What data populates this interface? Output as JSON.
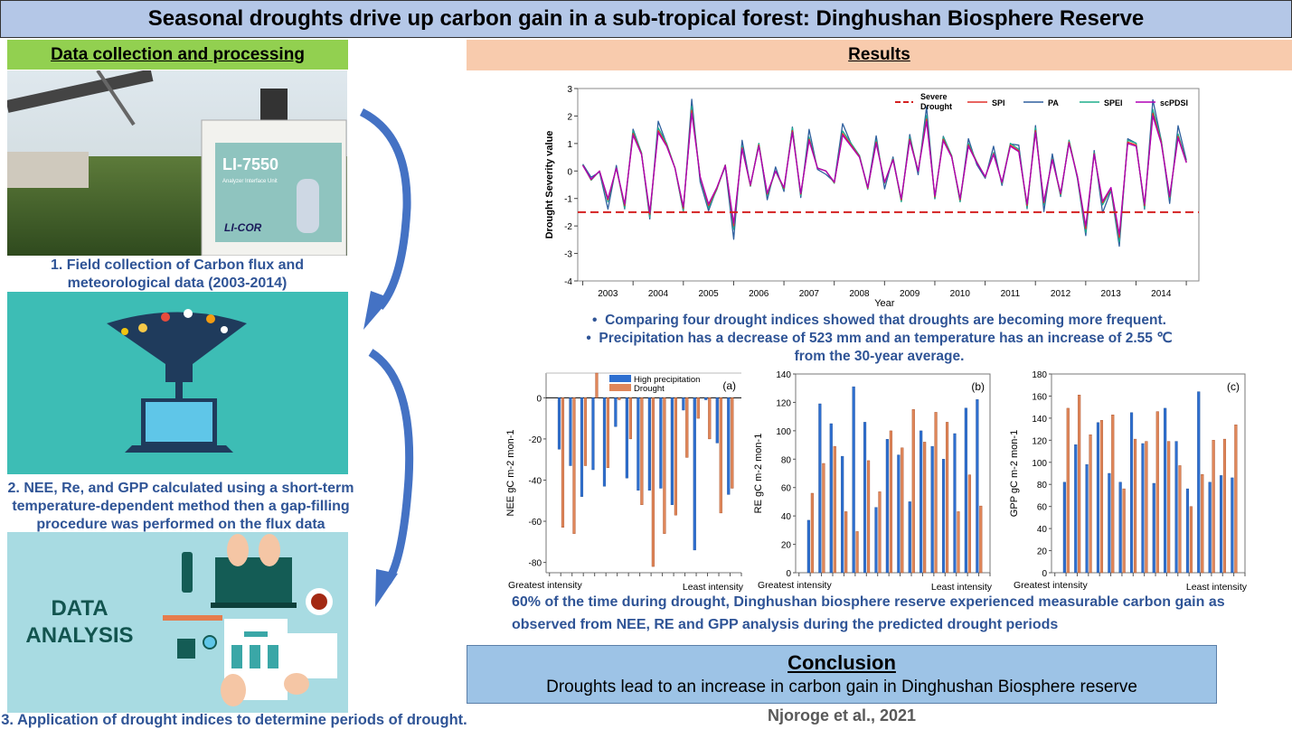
{
  "header": {
    "title": "Seasonal droughts drive up carbon gain in a sub-tropical forest: Dinghushan Biosphere Reserve"
  },
  "left": {
    "section_title": "Data collection and processing",
    "photo_labels": {
      "device": "LI-7550",
      "unit": "Analyzer Interface Unit",
      "brand": "LI-COR"
    },
    "step1": [
      "1. Field collection of Carbon flux and",
      "meteorological data (2003-2014)"
    ],
    "step2": [
      "2. NEE, Re, and GPP calculated using a short-term",
      "temperature-dependent method then a gap-filling",
      "procedure was performed on the flux data"
    ],
    "analysis_image_text": [
      "DATA",
      "ANALYSIS"
    ],
    "step3": "3. Application of drought indices to determine periods of drought."
  },
  "results": {
    "section_title": "Results",
    "bullets": [
      "Comparing four drought indices showed that droughts are becoming more frequent.",
      "Precipitation has a decrease of 523 mm and an temperature has an increase of 2.55 ℃",
      "from the 30-year average."
    ],
    "summary": [
      "60% of the time during drought, Dinghushan biosphere reserve experienced measurable carbon gain as",
      "observed from NEE, RE and GPP analysis during the predicted drought periods"
    ]
  },
  "conclusion": {
    "title": "Conclusion",
    "body": "Droughts lead to an increase in carbon gain in Dinghushan Biosphere reserve"
  },
  "citation": "Njoroge et al., 2021",
  "colors": {
    "spi": "#e0302c",
    "pa": "#2e5f9e",
    "spei": "#1fae8c",
    "scpdsi": "#b000b5",
    "severe": "#d42020",
    "blue_bar": "#2e6fd0",
    "orange_bar": "#e0875a",
    "text_blue": "#2f5496"
  },
  "chart_data": [
    {
      "type": "line",
      "title": "",
      "xlabel": "Year",
      "ylabel": "Drought Severity value",
      "ylim": [
        -4,
        3
      ],
      "yticks": [
        3,
        2,
        1,
        0,
        -1,
        -2,
        -3,
        -4
      ],
      "xticks": [
        "2003",
        "2004",
        "2005",
        "2006",
        "2007",
        "2008",
        "2009",
        "2010",
        "2011",
        "2012",
        "2013",
        "2014"
      ],
      "x_start": 2003,
      "x_step_years": 0.1667,
      "severe_drought_threshold": -1.5,
      "legend_position": "top-right",
      "legend": [
        "Severe Drought",
        "SPI",
        "PA",
        "SPEI",
        "scPDSI"
      ],
      "series": [
        {
          "name": "scPDSI",
          "values": [
            0.2,
            -0.3,
            0.0,
            -1.0,
            0.1,
            -1.2,
            1.3,
            0.6,
            -1.5,
            1.4,
            0.9,
            0.1,
            -1.3,
            2.1,
            -0.2,
            -1.2,
            -0.6,
            0.2,
            -1.9,
            0.8,
            -0.5,
            0.9,
            -0.8,
            0.0,
            -0.6,
            1.4,
            -0.8,
            1.1,
            0.1,
            0.0,
            -0.4,
            1.3,
            0.9,
            0.5,
            -0.6,
            1.0,
            -0.4,
            0.4,
            -1.0,
            1.1,
            0.0,
            1.8,
            -0.9,
            1.1,
            0.5,
            -1.0,
            0.9,
            0.3,
            -0.2,
            0.6,
            -0.4,
            0.9,
            0.7,
            -1.2,
            1.4,
            -1.1,
            0.4,
            -0.8,
            1.0,
            -0.2,
            -2.0,
            0.6,
            -1.1,
            -0.6,
            -2.3,
            1.0,
            0.9,
            -1.2,
            2.0,
            1.0,
            -0.9,
            1.2,
            0.3
          ]
        },
        {
          "name": "SPI",
          "scale_of_scPDSI": 1.05
        },
        {
          "name": "SPEI",
          "scale_of_scPDSI": 1.12
        },
        {
          "name": "PA",
          "scale_of_scPDSI": 1.25
        }
      ]
    },
    {
      "type": "bar",
      "panel": "(a)",
      "ylabel": "NEE gC m-2 mon-1",
      "ylim": [
        -85,
        12
      ],
      "yticks": [
        0,
        -20,
        -40,
        -60,
        -80
      ],
      "xlabel_left": "Greatest intensity",
      "xlabel_right": "Least intensity",
      "legend": [
        "High precipitation",
        "Drought"
      ],
      "series": [
        {
          "name": "High precipitation",
          "values": [
            -25,
            -33,
            -48,
            -35,
            -43,
            -14,
            -39,
            -45,
            -45,
            -44,
            -52,
            -6,
            -74,
            -1,
            -22,
            -47
          ]
        },
        {
          "name": "Drought",
          "values": [
            -63,
            -66,
            -33,
            12,
            -34,
            -1,
            -20,
            -52,
            -82,
            -66,
            -57,
            -29,
            -10,
            -20,
            -56,
            -44
          ]
        }
      ]
    },
    {
      "type": "bar",
      "panel": "(b)",
      "ylabel": "RE gC m-2 mon-1",
      "ylim": [
        0,
        140
      ],
      "yticks": [
        0,
        20,
        40,
        60,
        80,
        100,
        120,
        140
      ],
      "xlabel_left": "Greatest intensity",
      "xlabel_right": "Least intensity",
      "series": [
        {
          "name": "High precipitation",
          "values": [
            37,
            119,
            105,
            82,
            131,
            106,
            46,
            94,
            83,
            50,
            100,
            89,
            80,
            98,
            116,
            122
          ]
        },
        {
          "name": "Drought",
          "values": [
            56,
            77,
            89,
            43,
            29,
            79,
            57,
            100,
            88,
            115,
            92,
            113,
            106,
            43,
            69,
            47
          ]
        }
      ]
    },
    {
      "type": "bar",
      "panel": "(c)",
      "ylabel": "GPP gC m-2 mon-1",
      "ylim": [
        0,
        180
      ],
      "yticks": [
        0,
        20,
        40,
        60,
        80,
        100,
        120,
        140,
        160,
        180
      ],
      "xlabel_left": "Greatest intensity",
      "xlabel_right": "Least intensity",
      "series": [
        {
          "name": "High precipitation",
          "values": [
            82,
            116,
            98,
            136,
            90,
            82,
            145,
            117,
            81,
            149,
            119,
            76,
            164,
            82,
            88,
            86
          ]
        },
        {
          "name": "Drought",
          "values": [
            149,
            161,
            125,
            138,
            143,
            76,
            121,
            119,
            146,
            119,
            97,
            60,
            89,
            120,
            121,
            134
          ]
        }
      ]
    }
  ]
}
